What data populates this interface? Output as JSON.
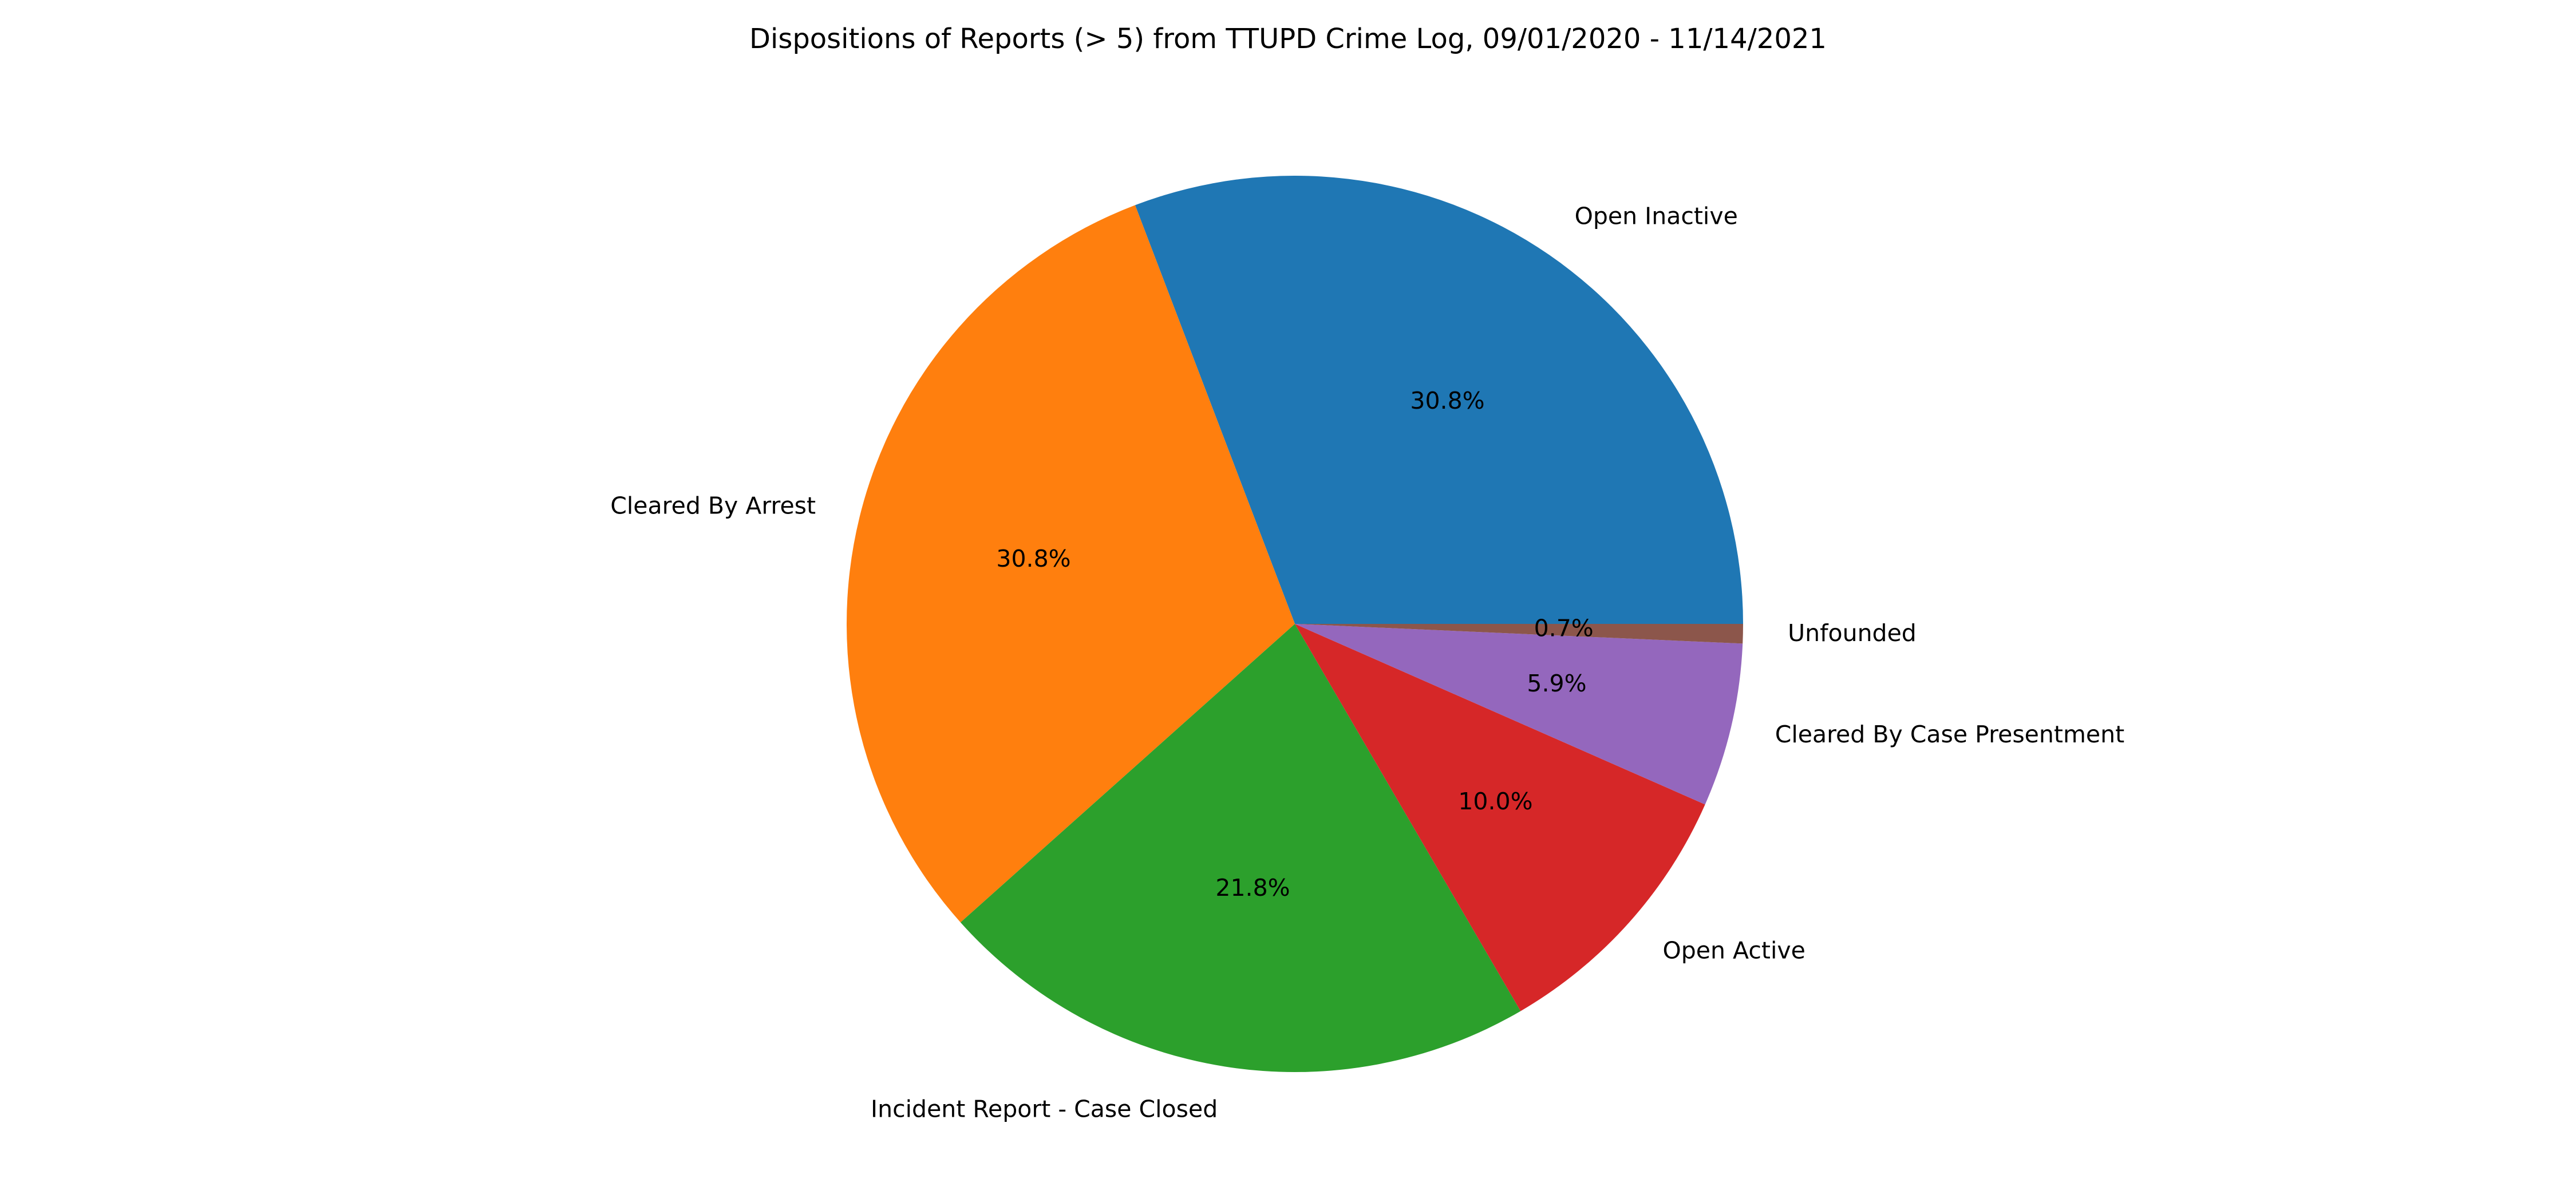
{
  "chart_data": {
    "type": "pie",
    "title": "Dispositions of Reports (> 5) from TTUPD Crime Log, 09/01/2020 - 11/14/2021",
    "start_angle_deg": 0,
    "direction": "counterclockwise",
    "slices": [
      {
        "label": "Open Inactive",
        "percent": 30.8,
        "pct_text": "30.8%",
        "color": "#1f77b4"
      },
      {
        "label": "Cleared By Arrest",
        "percent": 30.8,
        "pct_text": "30.8%",
        "color": "#ff7f0e"
      },
      {
        "label": "Incident Report - Case Closed",
        "percent": 21.8,
        "pct_text": "21.8%",
        "color": "#2ca02c"
      },
      {
        "label": "Open Active",
        "percent": 10.0,
        "pct_text": "10.0%",
        "color": "#d62728"
      },
      {
        "label": "Cleared By Case Presentment",
        "percent": 5.9,
        "pct_text": "5.9%",
        "color": "#9467bd"
      },
      {
        "label": "Unfounded",
        "percent": 0.7,
        "pct_text": "0.7%",
        "color": "#8c564b"
      }
    ]
  }
}
